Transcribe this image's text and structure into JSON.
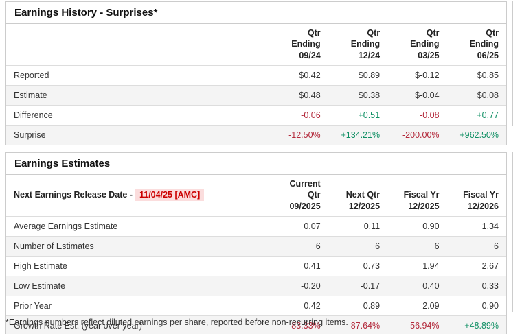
{
  "colors": {
    "positive": "#0e8f63",
    "negative": "#b3293b",
    "highlight_bg": "#fbdddd",
    "highlight_text": "#cc0000",
    "panel_border": "#cccccc",
    "stripe_bg": "#f4f4f4"
  },
  "earnings_history": {
    "title": "Earnings History - Surprises*",
    "columns": [
      {
        "line1": "Qtr Ending",
        "line2": "09/24"
      },
      {
        "line1": "Qtr Ending",
        "line2": "12/24"
      },
      {
        "line1": "Qtr Ending",
        "line2": "03/25"
      },
      {
        "line1": "Qtr Ending",
        "line2": "06/25"
      }
    ],
    "rows": [
      {
        "label": "Reported",
        "values": [
          "$0.42",
          "$0.89",
          "$-0.12",
          "$0.85"
        ],
        "tones": [
          "",
          "",
          "",
          ""
        ]
      },
      {
        "label": "Estimate",
        "values": [
          "$0.48",
          "$0.38",
          "$-0.04",
          "$0.08"
        ],
        "tones": [
          "",
          "",
          "",
          ""
        ]
      },
      {
        "label": "Difference",
        "values": [
          "-0.06",
          "+0.51",
          "-0.08",
          "+0.77"
        ],
        "tones": [
          "neg",
          "pos",
          "neg",
          "pos"
        ]
      },
      {
        "label": "Surprise",
        "values": [
          "-12.50%",
          "+134.21%",
          "-200.00%",
          "+962.50%"
        ],
        "tones": [
          "neg",
          "pos",
          "neg",
          "pos"
        ]
      }
    ]
  },
  "earnings_estimates": {
    "title": "Earnings Estimates",
    "release_label": "Next Earnings Release Date -",
    "release_date": "11/04/25 [AMC]",
    "columns": [
      {
        "line1": "Current Qtr",
        "line2": "09/2025"
      },
      {
        "line1": "Next Qtr",
        "line2": "12/2025"
      },
      {
        "line1": "Fiscal Yr",
        "line2": "12/2025"
      },
      {
        "line1": "Fiscal Yr",
        "line2": "12/2026"
      }
    ],
    "rows": [
      {
        "label": "Average Earnings Estimate",
        "values": [
          "0.07",
          "0.11",
          "0.90",
          "1.34"
        ],
        "tones": [
          "",
          "",
          "",
          ""
        ]
      },
      {
        "label": "Number of Estimates",
        "values": [
          "6",
          "6",
          "6",
          "6"
        ],
        "tones": [
          "",
          "",
          "",
          ""
        ]
      },
      {
        "label": "High Estimate",
        "values": [
          "0.41",
          "0.73",
          "1.94",
          "2.67"
        ],
        "tones": [
          "",
          "",
          "",
          ""
        ]
      },
      {
        "label": "Low Estimate",
        "values": [
          "-0.20",
          "-0.17",
          "0.40",
          "0.33"
        ],
        "tones": [
          "",
          "",
          "",
          ""
        ]
      },
      {
        "label": "Prior Year",
        "values": [
          "0.42",
          "0.89",
          "2.09",
          "0.90"
        ],
        "tones": [
          "",
          "",
          "",
          ""
        ]
      },
      {
        "label": "Growth Rate Est. (year over year)",
        "values": [
          "-83.33%",
          "-87.64%",
          "-56.94%",
          "+48.89%"
        ],
        "tones": [
          "neg",
          "neg",
          "neg",
          "pos"
        ]
      }
    ]
  },
  "footnote": "*Earnings numbers reflect diluted earnings per share, reported before non-recurring items."
}
